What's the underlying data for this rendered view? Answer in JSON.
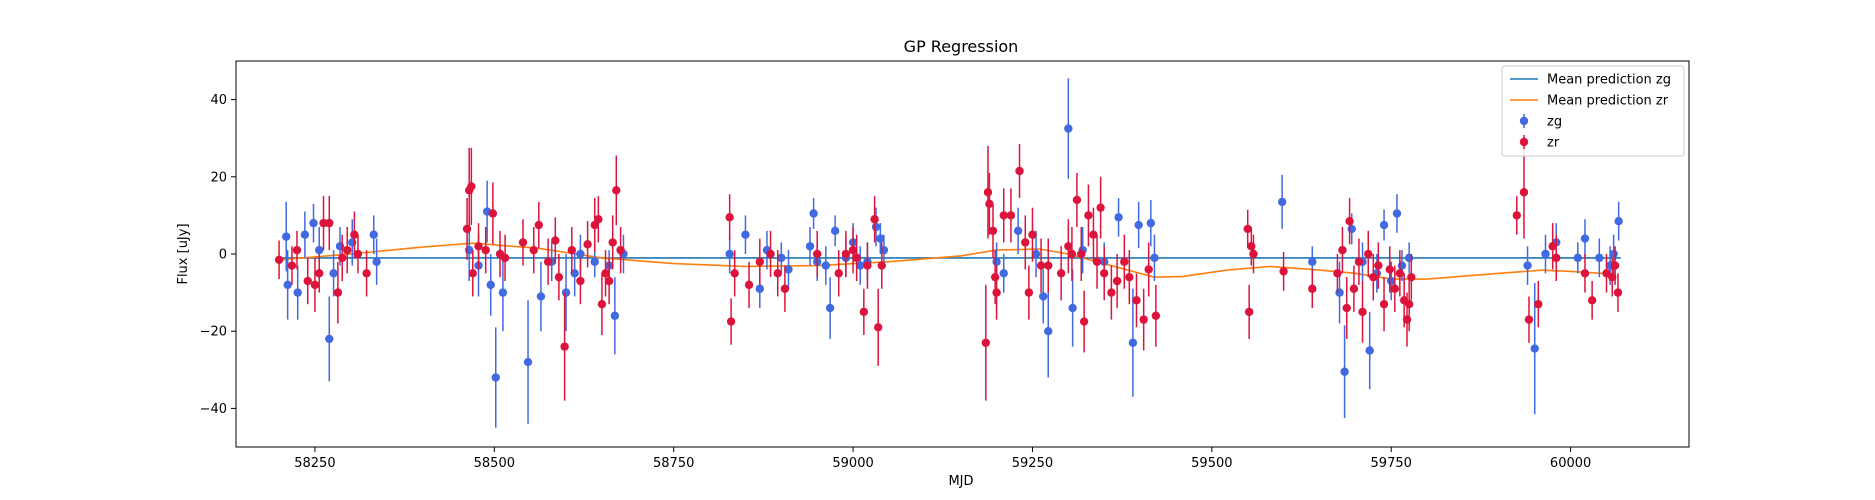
{
  "chart_data": {
    "type": "scatter",
    "title": "GP Regression",
    "xlabel": "MJD",
    "ylabel": "Flux [uJy]",
    "xlim": [
      58140,
      60165
    ],
    "ylim": [
      -50,
      50
    ],
    "xticks": [
      58250,
      58500,
      58750,
      59000,
      59250,
      59500,
      59750,
      60000
    ],
    "yticks": [
      -40,
      -20,
      0,
      20,
      40
    ],
    "legend_position": "top-right",
    "lines": [
      {
        "name": "Mean prediction zg",
        "color": "#1f77b4",
        "points": [
          [
            58200,
            -1.0
          ],
          [
            60070,
            -1.0
          ]
        ]
      },
      {
        "name": "Mean prediction zr",
        "color": "#ff7f0e",
        "points": [
          [
            58200,
            -1.5
          ],
          [
            58300,
            0.0
          ],
          [
            58400,
            1.8
          ],
          [
            58470,
            2.8
          ],
          [
            58560,
            1.5
          ],
          [
            58650,
            -1.0
          ],
          [
            58750,
            -2.5
          ],
          [
            58850,
            -3.2
          ],
          [
            58950,
            -3.0
          ],
          [
            59050,
            -2.0
          ],
          [
            59150,
            -0.5
          ],
          [
            59200,
            1.0
          ],
          [
            59260,
            1.3
          ],
          [
            59300,
            0.0
          ],
          [
            59360,
            -3.0
          ],
          [
            59420,
            -6.0
          ],
          [
            59460,
            -5.8
          ],
          [
            59520,
            -4.2
          ],
          [
            59580,
            -3.2
          ],
          [
            59640,
            -4.0
          ],
          [
            59700,
            -5.0
          ],
          [
            59750,
            -6.5
          ],
          [
            59800,
            -6.5
          ],
          [
            59900,
            -5.0
          ],
          [
            59960,
            -4.2
          ],
          [
            60000,
            -4.5
          ],
          [
            60060,
            -5.2
          ]
        ]
      }
    ],
    "series": [
      {
        "name": "zg",
        "color": "#4169e1",
        "points": [
          [
            58210,
            4.5,
            9
          ],
          [
            58212,
            -8,
            9
          ],
          [
            58226,
            -10,
            7
          ],
          [
            58236,
            5,
            6
          ],
          [
            58248,
            8,
            5
          ],
          [
            58256,
            1,
            6
          ],
          [
            58270,
            -22,
            11
          ],
          [
            58276,
            -5,
            6
          ],
          [
            58285,
            2,
            5
          ],
          [
            58302,
            3,
            6
          ],
          [
            58332,
            5,
            5
          ],
          [
            58336,
            -2,
            6
          ],
          [
            58465,
            1,
            8
          ],
          [
            58478,
            -3,
            8
          ],
          [
            58490,
            11,
            8
          ],
          [
            58495,
            -8,
            8
          ],
          [
            58502,
            -32,
            13
          ],
          [
            58512,
            -10,
            10
          ],
          [
            58547,
            -28,
            16
          ],
          [
            58565,
            -11,
            9
          ],
          [
            58580,
            -2,
            5
          ],
          [
            58600,
            -10,
            10
          ],
          [
            58612,
            -5,
            6
          ],
          [
            58620,
            0,
            5
          ],
          [
            58640,
            -2,
            4
          ],
          [
            58660,
            -3,
            4
          ],
          [
            58668,
            -16,
            10
          ],
          [
            58680,
            0,
            5
          ],
          [
            58828,
            0,
            5
          ],
          [
            58850,
            5,
            5
          ],
          [
            58870,
            -9,
            5
          ],
          [
            58880,
            1,
            5
          ],
          [
            58900,
            -1,
            4
          ],
          [
            58910,
            -4,
            5
          ],
          [
            58940,
            2,
            5
          ],
          [
            58945,
            10.5,
            4
          ],
          [
            58950,
            -2,
            5
          ],
          [
            58962,
            -3,
            5
          ],
          [
            58968,
            -14,
            8
          ],
          [
            58975,
            6,
            4
          ],
          [
            58990,
            -1,
            5
          ],
          [
            59000,
            3,
            5
          ],
          [
            59010,
            -3,
            5
          ],
          [
            59020,
            -2,
            5
          ],
          [
            59032,
            7,
            5
          ],
          [
            59038,
            4,
            4
          ],
          [
            59043,
            1,
            4
          ],
          [
            59200,
            -2,
            5
          ],
          [
            59210,
            -5,
            5
          ],
          [
            59230,
            6,
            6
          ],
          [
            59255,
            0,
            6
          ],
          [
            59265,
            -11,
            7
          ],
          [
            59272,
            -20,
            12
          ],
          [
            59300,
            32.5,
            13
          ],
          [
            59306,
            -14,
            10
          ],
          [
            59320,
            1,
            6
          ],
          [
            59350,
            -2,
            5
          ],
          [
            59370,
            9.5,
            5
          ],
          [
            59390,
            -23,
            14
          ],
          [
            59398,
            7.5,
            6
          ],
          [
            59415,
            8,
            6
          ],
          [
            59420,
            -1,
            6
          ],
          [
            59598,
            13.5,
            7
          ],
          [
            59640,
            -2,
            4
          ],
          [
            59678,
            -10,
            8
          ],
          [
            59685,
            -30.5,
            12
          ],
          [
            59695,
            6.5,
            4
          ],
          [
            59710,
            -2,
            5
          ],
          [
            59720,
            -25,
            10
          ],
          [
            59730,
            -5,
            5
          ],
          [
            59740,
            7.5,
            4
          ],
          [
            59750,
            -7,
            5
          ],
          [
            59758,
            10.5,
            5
          ],
          [
            59765,
            -3,
            4
          ],
          [
            59775,
            -1,
            4
          ],
          [
            59940,
            -3,
            5
          ],
          [
            59950,
            -24.5,
            17
          ],
          [
            59965,
            0,
            5
          ],
          [
            59980,
            3,
            5
          ],
          [
            60010,
            -1,
            4
          ],
          [
            60020,
            4,
            5
          ],
          [
            60040,
            -1,
            5
          ],
          [
            60055,
            -3,
            5
          ],
          [
            60060,
            0,
            5
          ],
          [
            60067,
            8.5,
            5
          ]
        ]
      },
      {
        "name": "zr",
        "color": "#dc143c",
        "points": [
          [
            58200,
            -1.5,
            5
          ],
          [
            58218,
            -3,
            5
          ],
          [
            58225,
            1,
            5
          ],
          [
            58240,
            -7,
            6
          ],
          [
            58250,
            -8,
            7
          ],
          [
            58256,
            -5,
            5
          ],
          [
            58262,
            8,
            7
          ],
          [
            58270,
            8,
            7
          ],
          [
            58282,
            -10,
            8
          ],
          [
            58288,
            -1,
            6
          ],
          [
            58295,
            1,
            6
          ],
          [
            58305,
            5,
            6
          ],
          [
            58310,
            0,
            5
          ],
          [
            58322,
            -5,
            6
          ],
          [
            58462,
            6.5,
            8
          ],
          [
            58465,
            16.5,
            11
          ],
          [
            58468,
            17.5,
            10
          ],
          [
            58470,
            -5,
            6
          ],
          [
            58478,
            2,
            6
          ],
          [
            58488,
            1,
            6
          ],
          [
            58498,
            10.5,
            8
          ],
          [
            58508,
            0,
            6
          ],
          [
            58515,
            -1,
            6
          ],
          [
            58540,
            3,
            6
          ],
          [
            58555,
            1,
            6
          ],
          [
            58562,
            7.5,
            6
          ],
          [
            58575,
            -2,
            6
          ],
          [
            58585,
            3.5,
            6
          ],
          [
            58590,
            -6,
            6
          ],
          [
            58598,
            -24,
            14
          ],
          [
            58608,
            1,
            6
          ],
          [
            58620,
            -7,
            6
          ],
          [
            58630,
            2.5,
            6
          ],
          [
            58640,
            7.5,
            7
          ],
          [
            58645,
            9,
            6
          ],
          [
            58650,
            -13,
            8
          ],
          [
            58655,
            -5,
            6
          ],
          [
            58660,
            -7,
            6
          ],
          [
            58665,
            3,
            7
          ],
          [
            58670,
            16.5,
            9
          ],
          [
            58676,
            1,
            6
          ],
          [
            58828,
            9.5,
            6
          ],
          [
            58830,
            -17.5,
            6
          ],
          [
            58835,
            -5,
            6
          ],
          [
            58855,
            -8,
            6
          ],
          [
            58870,
            -2,
            6
          ],
          [
            58885,
            0,
            6
          ],
          [
            58895,
            -5,
            6
          ],
          [
            58905,
            -9,
            6
          ],
          [
            58950,
            0,
            6
          ],
          [
            58980,
            -5,
            6
          ],
          [
            58990,
            0,
            6
          ],
          [
            59000,
            1,
            6
          ],
          [
            59005,
            -1,
            6
          ],
          [
            59015,
            -15,
            6
          ],
          [
            59020,
            -3,
            6
          ],
          [
            59030,
            9,
            6
          ],
          [
            59035,
            -19,
            10
          ],
          [
            59040,
            -3,
            6
          ],
          [
            59185,
            -23,
            15
          ],
          [
            59188,
            16,
            12
          ],
          [
            59190,
            13,
            8
          ],
          [
            59195,
            6,
            7
          ],
          [
            59198,
            -6,
            7
          ],
          [
            59200,
            -10,
            7
          ],
          [
            59210,
            10,
            7
          ],
          [
            59220,
            10,
            7
          ],
          [
            59232,
            21.5,
            7
          ],
          [
            59240,
            3,
            7
          ],
          [
            59245,
            -10,
            7
          ],
          [
            59250,
            5,
            7
          ],
          [
            59262,
            -3,
            7
          ],
          [
            59272,
            -3,
            7
          ],
          [
            59290,
            -5,
            7
          ],
          [
            59300,
            2,
            7
          ],
          [
            59305,
            0,
            7
          ],
          [
            59312,
            14,
            7
          ],
          [
            59318,
            0,
            7
          ],
          [
            59322,
            -17.5,
            8
          ],
          [
            59328,
            10,
            8
          ],
          [
            59335,
            5,
            7
          ],
          [
            59340,
            -2,
            7
          ],
          [
            59345,
            12,
            8
          ],
          [
            59350,
            -5,
            7
          ],
          [
            59360,
            -10,
            7
          ],
          [
            59368,
            -7,
            7
          ],
          [
            59378,
            -2,
            7
          ],
          [
            59385,
            -6,
            7
          ],
          [
            59395,
            -12,
            7
          ],
          [
            59405,
            -17,
            8
          ],
          [
            59412,
            -4,
            7
          ],
          [
            59422,
            -16,
            8
          ],
          [
            59550,
            6.5,
            5
          ],
          [
            59552,
            -15,
            7
          ],
          [
            59555,
            2,
            5
          ],
          [
            59558,
            0,
            5
          ],
          [
            59600,
            -4.5,
            5
          ],
          [
            59640,
            -9,
            5
          ],
          [
            59675,
            -5,
            5
          ],
          [
            59682,
            1,
            6
          ],
          [
            59688,
            -14,
            8
          ],
          [
            59692,
            8.5,
            6
          ],
          [
            59698,
            -9,
            6
          ],
          [
            59705,
            -2,
            6
          ],
          [
            59710,
            -15,
            8
          ],
          [
            59718,
            0,
            6
          ],
          [
            59725,
            -6,
            6
          ],
          [
            59732,
            -3,
            6
          ],
          [
            59740,
            -13,
            7
          ],
          [
            59748,
            -4,
            6
          ],
          [
            59755,
            -9,
            6
          ],
          [
            59762,
            -5,
            6
          ],
          [
            59768,
            -12,
            7
          ],
          [
            59772,
            -17,
            7
          ],
          [
            59775,
            -13,
            7
          ],
          [
            59778,
            -6,
            6
          ],
          [
            59925,
            10,
            5
          ],
          [
            59935,
            16,
            12
          ],
          [
            59942,
            -17,
            6
          ],
          [
            59955,
            -13,
            6
          ],
          [
            59975,
            2,
            6
          ],
          [
            59980,
            -1,
            6
          ],
          [
            60020,
            -5,
            5
          ],
          [
            60030,
            -12,
            5
          ],
          [
            60050,
            -5,
            5
          ],
          [
            60058,
            -6,
            5
          ],
          [
            60062,
            -3,
            5
          ],
          [
            60066,
            -10,
            5
          ]
        ]
      }
    ]
  }
}
